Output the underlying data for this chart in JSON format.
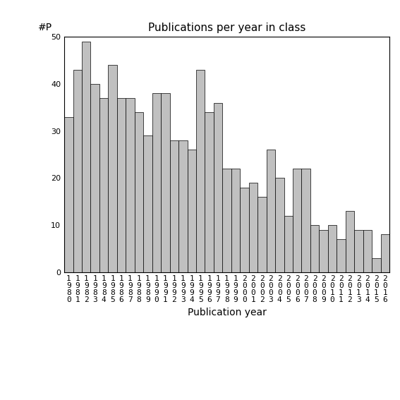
{
  "title": "Publications per year in class",
  "xlabel": "Publication year",
  "ylabel": "#P",
  "years": [
    "1980",
    "1981",
    "1982",
    "1983",
    "1984",
    "1985",
    "1986",
    "1987",
    "1988",
    "1989",
    "1990",
    "1991",
    "1992",
    "1993",
    "1994",
    "1995",
    "1996",
    "1997",
    "1998",
    "1999",
    "2000",
    "2001",
    "2002",
    "2003",
    "2004",
    "2005",
    "2006",
    "2007",
    "2008",
    "2009",
    "2010",
    "2011",
    "2012",
    "2013",
    "2014",
    "2015",
    "2016"
  ],
  "values": [
    33,
    43,
    49,
    40,
    37,
    44,
    37,
    37,
    34,
    29,
    38,
    38,
    28,
    28,
    26,
    43,
    34,
    36,
    22,
    22,
    18,
    19,
    16,
    26,
    20,
    12,
    22,
    22,
    10,
    9,
    10,
    7,
    13,
    9,
    9,
    3,
    8
  ],
  "bar_color": "#c0c0c0",
  "bar_edge_color": "#000000",
  "ylim": [
    0,
    50
  ],
  "yticks": [
    0,
    10,
    20,
    30,
    40,
    50
  ],
  "background_color": "#ffffff",
  "title_fontsize": 11,
  "label_fontsize": 10,
  "tick_fontsize": 8
}
